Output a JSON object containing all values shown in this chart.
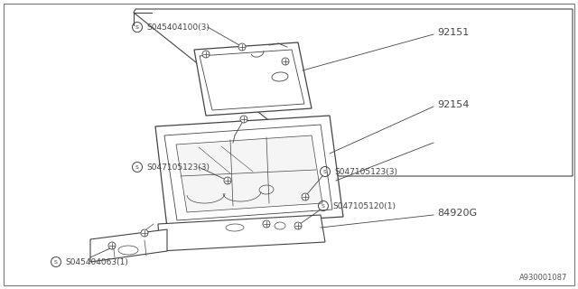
{
  "bg_color": "#ffffff",
  "lc": "#444444",
  "lw_main": 0.8,
  "lw_thin": 0.5,
  "lw_leader": 0.6,
  "watermark": "A930001087",
  "label_92151": "92151",
  "label_92154": "92154",
  "label_84920G": "84920G",
  "label_s1": "S045404100(3)",
  "label_s2": "S047105123(3)",
  "label_s3": "S047105123(3)",
  "label_s4": "S047105120(1)",
  "label_s5": "S045404063(1)",
  "figsize": [
    6.4,
    3.2
  ],
  "dpi": 100
}
